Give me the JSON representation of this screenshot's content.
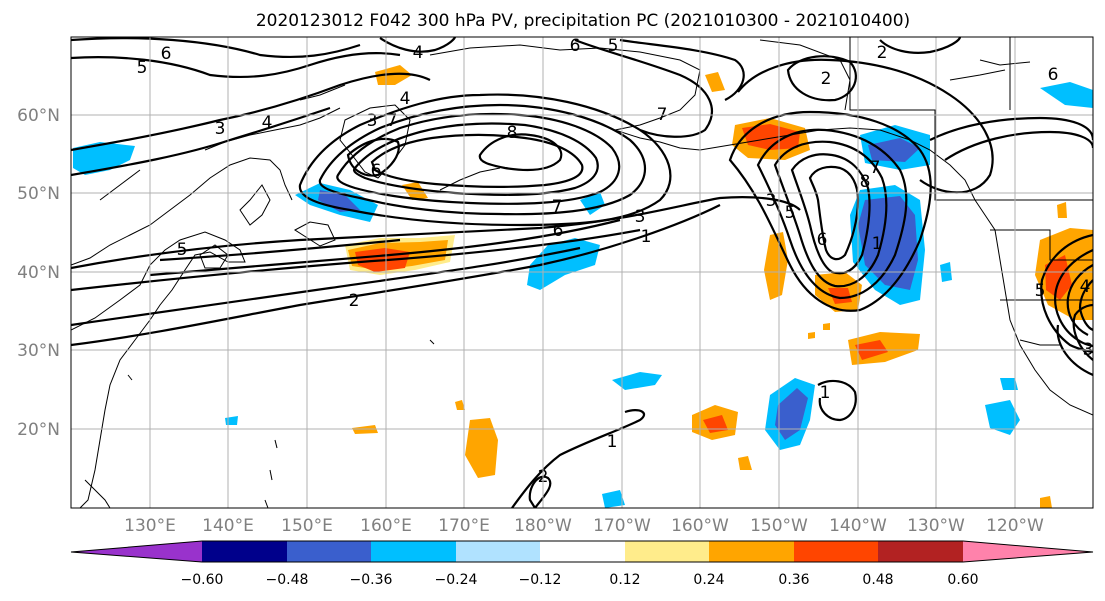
{
  "title": "2020123012 F042 300 hPa PV, precipitation PC (2021010300 - 2021010400)",
  "lat_labels": [
    "60°N",
    "50°N",
    "40°N",
    "30°N",
    "20°N"
  ],
  "lon_labels": [
    "130°E",
    "140°E",
    "150°E",
    "160°E",
    "170°E",
    "180°W",
    "170°W",
    "160°W",
    "150°W",
    "140°W",
    "130°W",
    "120°W"
  ],
  "colorbar": {
    "ticks": [
      "−0.60",
      "−0.48",
      "−0.36",
      "−0.24",
      "−0.12",
      "0.12",
      "0.24",
      "0.36",
      "0.48",
      "0.60"
    ],
    "colors": [
      "#9932cc",
      "#00008b",
      "#3a5fcd",
      "#00bfff",
      "#b0e2ff",
      "#ffffff",
      "#ffec8b",
      "#ffa500",
      "#ff4500",
      "#b22222",
      "#ff82ab"
    ]
  },
  "contour_labels": [
    "6",
    "5",
    "4",
    "6",
    "5",
    "3",
    "4",
    "4",
    "3",
    "7",
    "8",
    "7",
    "7",
    "6",
    "3",
    "1",
    "2",
    "2",
    "5",
    "3",
    "5",
    "6",
    "7",
    "8",
    "1",
    "2",
    "6",
    "5",
    "4",
    "3",
    "1",
    "1",
    "6",
    "2"
  ]
}
